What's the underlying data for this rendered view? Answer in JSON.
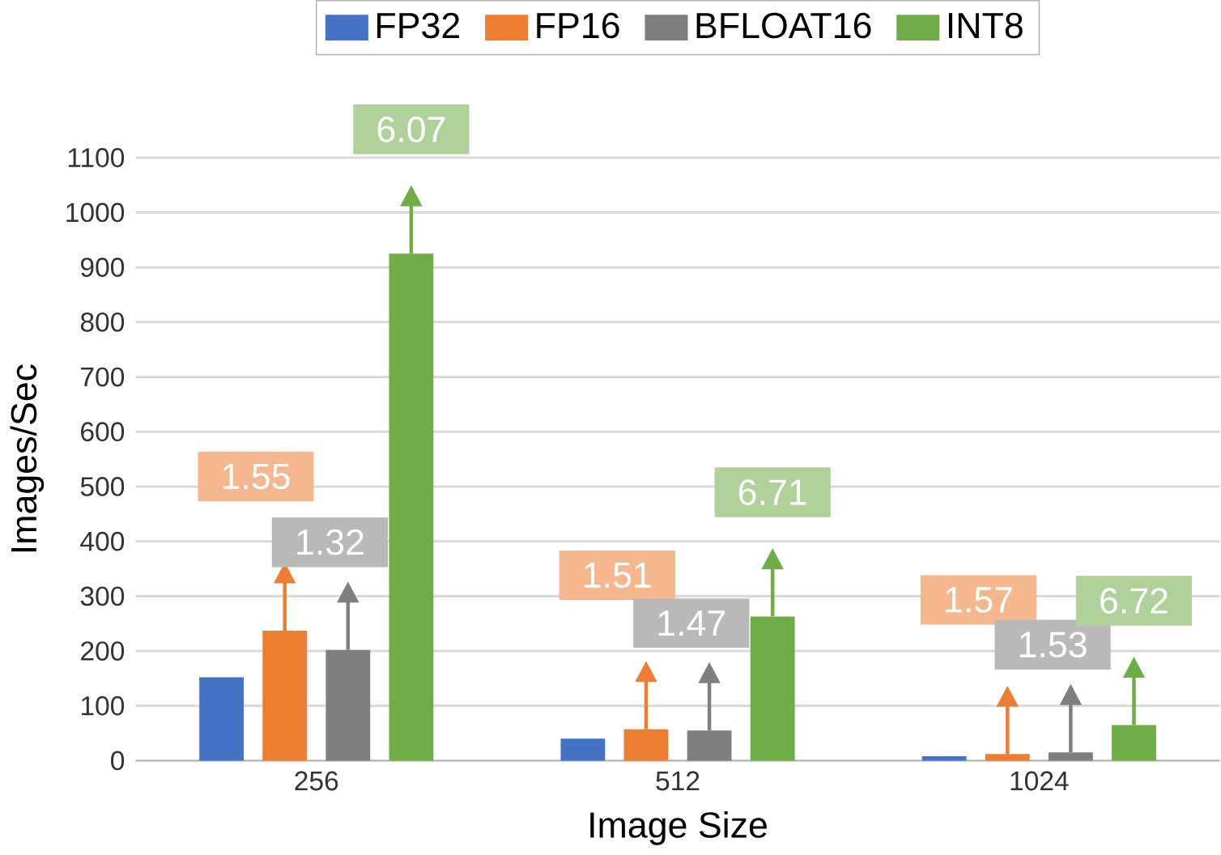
{
  "chart_data": {
    "type": "bar",
    "xlabel": "Image Size",
    "ylabel": "Images/Sec",
    "categories": [
      "256",
      "512",
      "1024"
    ],
    "series": [
      {
        "name": "FP32",
        "color": "#4472c4",
        "values": [
          152,
          40,
          8
        ]
      },
      {
        "name": "FP16",
        "color": "#ed7d31",
        "values": [
          237,
          57,
          12
        ]
      },
      {
        "name": "BFLOAT16",
        "color": "#7f7f7f",
        "values": [
          202,
          55,
          15
        ]
      },
      {
        "name": "INT8",
        "color": "#70ad47",
        "values": [
          925,
          263,
          65
        ]
      }
    ],
    "ylim": [
      0,
      1100
    ],
    "yticks": [
      0,
      100,
      200,
      300,
      400,
      500,
      600,
      700,
      800,
      900,
      1000,
      1100
    ],
    "grid": "y",
    "legend": "top",
    "annotations": [
      "1.55",
      "1.32",
      "6.07",
      "1.51",
      "1.47",
      "6.71",
      "1.57",
      "1.53",
      "6.72"
    ]
  }
}
